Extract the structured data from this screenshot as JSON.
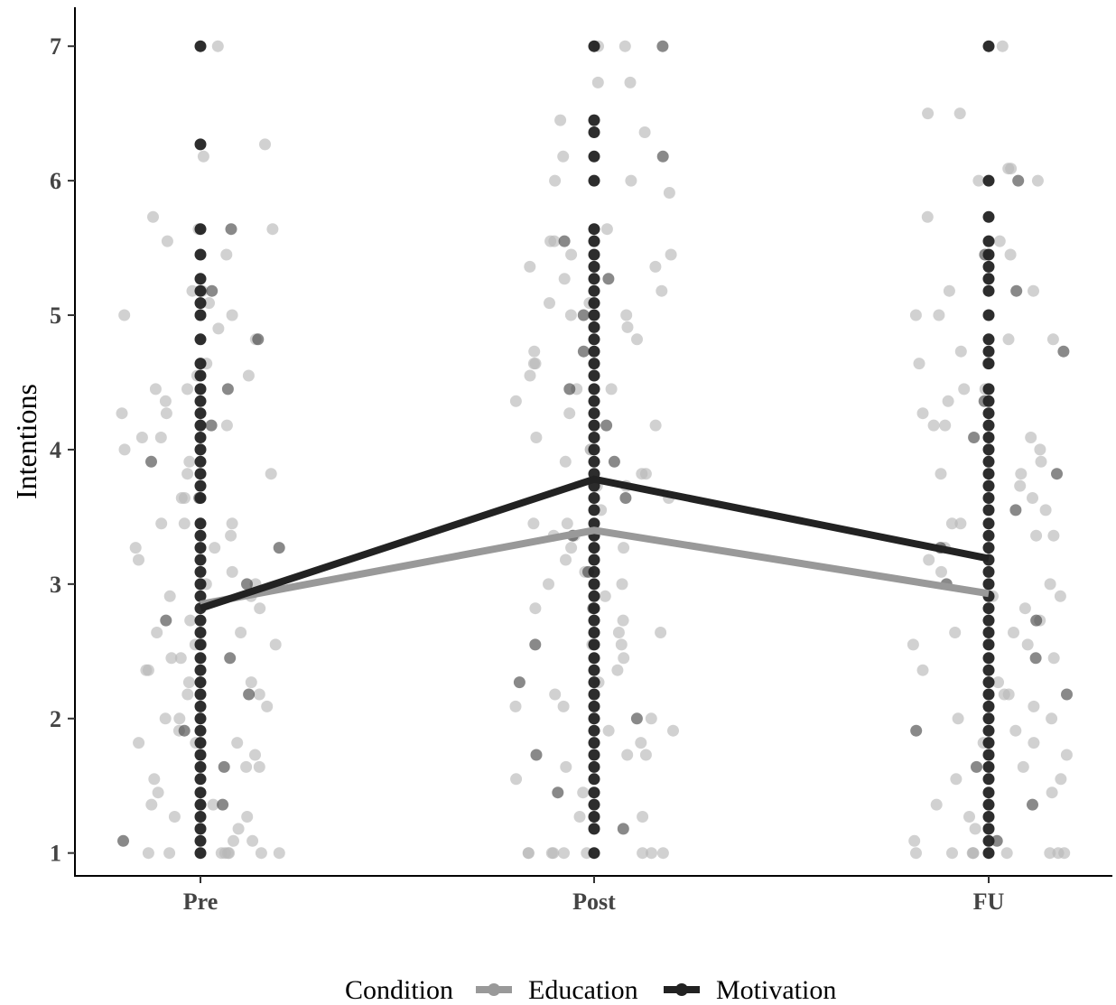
{
  "chart_data": {
    "type": "scatter",
    "ylabel": "Intentions",
    "xlabel": "",
    "categories": [
      "Pre",
      "Post",
      "FU"
    ],
    "ylim": [
      0.83,
      7.29
    ],
    "yticks": [
      1,
      2,
      3,
      4,
      5,
      6,
      7
    ],
    "grid": false,
    "legend": {
      "title": "Condition",
      "position": "bottom",
      "entries": [
        "Education",
        "Motivation"
      ]
    },
    "colors": {
      "Education": "#999999",
      "Motivation": "#222222"
    },
    "series": [
      {
        "name": "Education",
        "means": [
          2.85,
          3.4,
          2.93
        ]
      },
      {
        "name": "Motivation",
        "means": [
          2.82,
          3.78,
          3.19
        ]
      }
    ],
    "points": [
      {
        "category": "Pre",
        "Motivation": [
          1,
          1.09,
          1.18,
          1.27,
          1.36,
          1.45,
          1.55,
          1.64,
          1.73,
          1.82,
          1.91,
          2,
          2.09,
          2.18,
          2.27,
          2.36,
          2.45,
          2.55,
          2.64,
          2.73,
          2.82,
          2.91,
          3,
          3.09,
          3.18,
          3.27,
          3.36,
          3.45,
          3.64,
          3.73,
          3.82,
          3.91,
          4,
          4.09,
          4.18,
          4.27,
          4.36,
          4.45,
          4.55,
          4.64,
          4.82,
          5,
          5.09,
          5.18,
          5.27,
          5.45,
          5.64,
          6.27,
          7
        ],
        "Education": [
          1,
          1,
          1,
          1,
          1,
          1,
          1,
          1,
          1.09,
          1.09,
          1.18,
          1.27,
          1.27,
          1.36,
          1.36,
          1.45,
          1.55,
          1.64,
          1.64,
          1.73,
          1.82,
          1.82,
          1.82,
          1.91,
          2,
          2,
          2.09,
          2.18,
          2.18,
          2.27,
          2.27,
          2.36,
          2.36,
          2.45,
          2.45,
          2.55,
          2.55,
          2.55,
          2.64,
          2.64,
          2.73,
          2.82,
          2.91,
          2.91,
          3,
          3,
          3.09,
          3.18,
          3.27,
          3.27,
          3.36,
          3.45,
          3.45,
          3.45,
          3.64,
          3.64,
          3.82,
          3.82,
          3.91,
          4,
          4.09,
          4.09,
          4.18,
          4.27,
          4.27,
          4.36,
          4.45,
          4.45,
          4.55,
          4.55,
          4.64,
          4.82,
          4.9,
          5,
          5,
          5.09,
          5.18,
          5.18,
          5.45,
          5.55,
          5.64,
          5.64,
          5.73,
          6.18,
          6.27,
          7
        ]
      },
      {
        "category": "Post",
        "Motivation": [
          1,
          1.18,
          1.27,
          1.36,
          1.45,
          1.55,
          1.64,
          1.73,
          1.82,
          1.91,
          2,
          2.09,
          2.18,
          2.27,
          2.36,
          2.45,
          2.55,
          2.64,
          2.73,
          2.82,
          2.91,
          3,
          3.09,
          3.18,
          3.27,
          3.36,
          3.45,
          3.55,
          3.64,
          3.73,
          3.82,
          3.91,
          4,
          4.09,
          4.18,
          4.27,
          4.36,
          4.45,
          4.55,
          4.64,
          4.73,
          4.82,
          4.91,
          5,
          5.09,
          5.18,
          5.27,
          5.36,
          5.45,
          5.55,
          5.64,
          6,
          6.18,
          6.36,
          6.45,
          7
        ],
        "Education": [
          1,
          1,
          1,
          1,
          1,
          1,
          1,
          1,
          1,
          1.27,
          1.27,
          1.45,
          1.55,
          1.64,
          1.73,
          1.73,
          1.82,
          1.91,
          1.91,
          2,
          2.09,
          2.09,
          2.18,
          2.27,
          2.36,
          2.45,
          2.55,
          2.55,
          2.64,
          2.64,
          2.73,
          2.82,
          2.91,
          3,
          3,
          3.09,
          3.18,
          3.27,
          3.27,
          3.36,
          3.36,
          3.45,
          3.45,
          3.55,
          3.64,
          3.73,
          3.73,
          3.82,
          3.82,
          3.91,
          4,
          4,
          4.09,
          4.18,
          4.27,
          4.36,
          4.45,
          4.45,
          4.55,
          4.64,
          4.64,
          4.73,
          4.82,
          4.91,
          5,
          5,
          5.09,
          5.09,
          5.18,
          5.27,
          5.36,
          5.36,
          5.45,
          5.45,
          5.55,
          5.55,
          5.64,
          5.91,
          6,
          6,
          6.18,
          6.36,
          6.45,
          6.73,
          6.73,
          7,
          7
        ]
      },
      {
        "category": "FU",
        "Motivation": [
          1,
          1.09,
          1.18,
          1.27,
          1.36,
          1.45,
          1.55,
          1.64,
          1.73,
          1.82,
          1.91,
          2,
          2.09,
          2.18,
          2.27,
          2.36,
          2.45,
          2.55,
          2.64,
          2.73,
          2.82,
          2.91,
          3,
          3.09,
          3.18,
          3.27,
          3.36,
          3.45,
          3.55,
          3.64,
          3.73,
          3.82,
          3.91,
          4,
          4.09,
          4.18,
          4.27,
          4.36,
          4.45,
          4.64,
          4.73,
          4.82,
          5,
          5.18,
          5.27,
          5.36,
          5.45,
          5.55,
          5.73,
          6,
          7
        ],
        "Education": [
          1,
          1,
          1,
          1,
          1,
          1,
          1,
          1,
          1,
          1.09,
          1.18,
          1.27,
          1.36,
          1.45,
          1.55,
          1.55,
          1.64,
          1.73,
          1.82,
          1.82,
          1.91,
          2,
          2,
          2.09,
          2.18,
          2.18,
          2.27,
          2.36,
          2.45,
          2.55,
          2.55,
          2.64,
          2.64,
          2.73,
          2.82,
          2.91,
          2.91,
          3,
          3.09,
          3.18,
          3.27,
          3.36,
          3.36,
          3.45,
          3.45,
          3.55,
          3.64,
          3.73,
          3.82,
          3.82,
          3.91,
          4,
          4.09,
          4.18,
          4.18,
          4.27,
          4.36,
          4.45,
          4.45,
          4.64,
          4.64,
          4.73,
          4.82,
          4.82,
          5,
          5,
          5.18,
          5.18,
          5.27,
          5.45,
          5.55,
          5.73,
          6,
          6,
          6.09,
          6.09,
          6.5,
          6.5,
          7
        ]
      }
    ]
  }
}
